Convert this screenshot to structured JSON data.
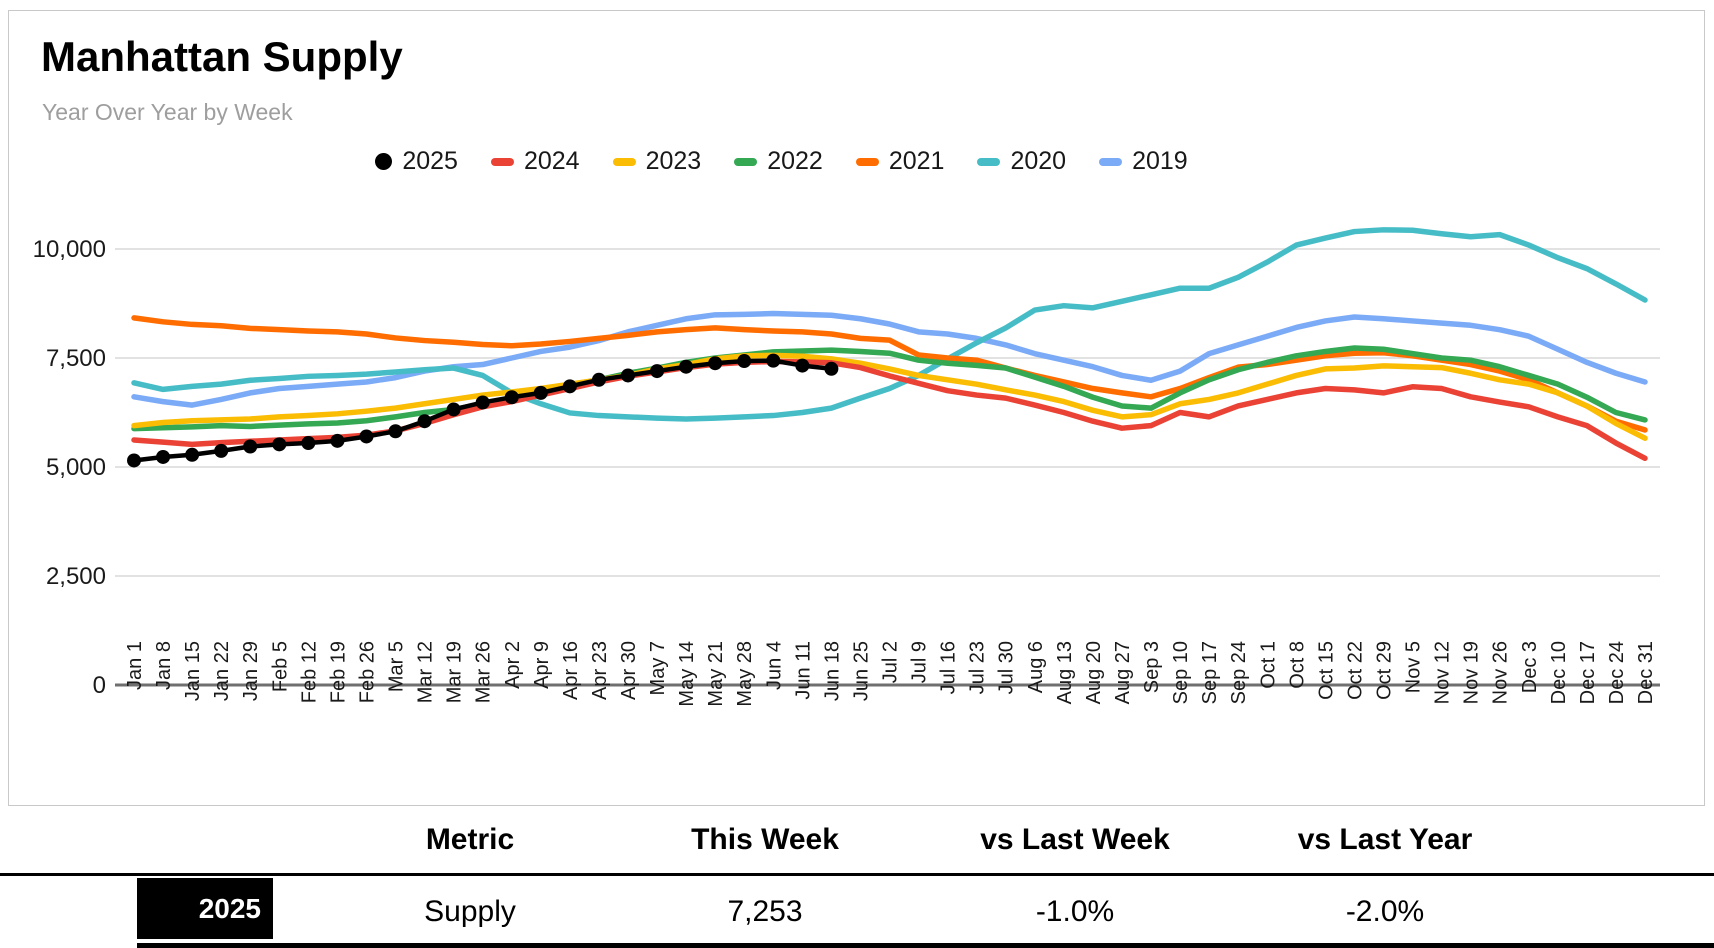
{
  "header": {
    "title": "Manhattan Supply",
    "subtitle": "Year Over Year by Week"
  },
  "chart_data": {
    "type": "line",
    "title": "Manhattan Supply",
    "subtitle": "Year Over Year by Week",
    "xlabel": "",
    "ylabel": "",
    "grid": true,
    "legend_position": "top",
    "ylim": [
      0,
      11000
    ],
    "y_axis": {
      "ticks": [
        0,
        2500,
        5000,
        7500,
        10000
      ],
      "tick_labels": [
        "0",
        "2,500",
        "5,000",
        "7,500",
        "10,000"
      ]
    },
    "x_categories": [
      "Jan 1",
      "Jan 8",
      "Jan 15",
      "Jan 22",
      "Jan 29",
      "Feb 5",
      "Feb 12",
      "Feb 19",
      "Feb 26",
      "Mar 5",
      "Mar 12",
      "Mar 19",
      "Mar 26",
      "Apr 2",
      "Apr 9",
      "Apr 16",
      "Apr 23",
      "Apr 30",
      "May 7",
      "May 14",
      "May 21",
      "May 28",
      "Jun 4",
      "Jun 11",
      "Jun 18",
      "Jun 25",
      "Jul 2",
      "Jul 9",
      "Jul 16",
      "Jul 23",
      "Jul 30",
      "Aug 6",
      "Aug 13",
      "Aug 20",
      "Aug 27",
      "Sep 3",
      "Sep 10",
      "Sep 17",
      "Sep 24",
      "Oct 1",
      "Oct 8",
      "Oct 15",
      "Oct 22",
      "Oct 29",
      "Nov 5",
      "Nov 12",
      "Nov 19",
      "Nov 26",
      "Dec 3",
      "Dec 10",
      "Dec 17",
      "Dec 24",
      "Dec 31"
    ],
    "series": [
      {
        "name": "2025",
        "color": "#000000",
        "point_markers": true,
        "values": [
          5150,
          5230,
          5280,
          5370,
          5470,
          5520,
          5550,
          5600,
          5700,
          5820,
          6050,
          6320,
          6480,
          6600,
          6700,
          6850,
          7000,
          7100,
          7200,
          7300,
          7380,
          7430,
          7440,
          7326,
          7253,
          null,
          null,
          null,
          null,
          null,
          null,
          null,
          null,
          null,
          null,
          null,
          null,
          null,
          null,
          null,
          null,
          null,
          null,
          null,
          null,
          null,
          null,
          null,
          null,
          null,
          null,
          null,
          null
        ]
      },
      {
        "name": "2024",
        "color": "#EA4335",
        "point_markers": false,
        "values": [
          5620,
          5570,
          5520,
          5560,
          5590,
          5620,
          5650,
          5680,
          5730,
          5830,
          6000,
          6200,
          6380,
          6500,
          6650,
          6800,
          6950,
          7080,
          7180,
          7280,
          7360,
          7400,
          7420,
          7410,
          7390,
          7280,
          7090,
          6920,
          6750,
          6650,
          6580,
          6420,
          6250,
          6050,
          5890,
          5950,
          6250,
          6150,
          6400,
          6550,
          6700,
          6800,
          6770,
          6700,
          6840,
          6800,
          6610,
          6490,
          6380,
          6150,
          5950,
          5550,
          5200
        ]
      },
      {
        "name": "2023",
        "color": "#FBBC04",
        "point_markers": false,
        "values": [
          5950,
          6020,
          6060,
          6080,
          6100,
          6150,
          6180,
          6220,
          6280,
          6350,
          6450,
          6550,
          6650,
          6720,
          6800,
          6900,
          7000,
          7100,
          7250,
          7350,
          7480,
          7550,
          7560,
          7540,
          7480,
          7380,
          7250,
          7100,
          7000,
          6900,
          6770,
          6650,
          6500,
          6300,
          6150,
          6200,
          6450,
          6550,
          6700,
          6900,
          7100,
          7250,
          7270,
          7320,
          7300,
          7280,
          7150,
          7000,
          6900,
          6700,
          6400,
          6000,
          5660
        ]
      },
      {
        "name": "2022",
        "color": "#34A853",
        "point_markers": false,
        "values": [
          5880,
          5900,
          5920,
          5950,
          5930,
          5960,
          5990,
          6010,
          6060,
          6150,
          6250,
          6320,
          6450,
          6550,
          6700,
          6850,
          7000,
          7150,
          7270,
          7400,
          7500,
          7570,
          7640,
          7660,
          7680,
          7650,
          7610,
          7450,
          7380,
          7330,
          7270,
          7060,
          6850,
          6600,
          6400,
          6350,
          6700,
          7000,
          7230,
          7400,
          7550,
          7650,
          7730,
          7700,
          7600,
          7500,
          7450,
          7300,
          7100,
          6900,
          6600,
          6250,
          6080
        ]
      },
      {
        "name": "2021",
        "color": "#FF6D01",
        "point_markers": false,
        "values": [
          8420,
          8330,
          8270,
          8240,
          8180,
          8150,
          8120,
          8100,
          8050,
          7960,
          7900,
          7860,
          7810,
          7780,
          7820,
          7880,
          7950,
          8020,
          8100,
          8150,
          8190,
          8150,
          8120,
          8100,
          8050,
          7950,
          7910,
          7570,
          7500,
          7450,
          7270,
          7100,
          6950,
          6800,
          6700,
          6610,
          6800,
          7050,
          7290,
          7350,
          7450,
          7550,
          7610,
          7620,
          7550,
          7450,
          7350,
          7200,
          7000,
          6700,
          6400,
          6050,
          5850
        ]
      },
      {
        "name": "2020",
        "color": "#46BDC6",
        "point_markers": false,
        "values": [
          6930,
          6780,
          6850,
          6900,
          6990,
          7030,
          7080,
          7100,
          7130,
          7180,
          7230,
          7270,
          7100,
          6700,
          6450,
          6240,
          6180,
          6150,
          6120,
          6100,
          6120,
          6150,
          6180,
          6250,
          6350,
          6580,
          6800,
          7100,
          7480,
          7850,
          8190,
          8600,
          8700,
          8650,
          8800,
          8950,
          9100,
          9100,
          9350,
          9700,
          10090,
          10250,
          10400,
          10440,
          10430,
          10350,
          10280,
          10330,
          10090,
          9800,
          9550,
          9200,
          8830
        ]
      },
      {
        "name": "2019",
        "color": "#7BAAF7",
        "point_markers": false,
        "values": [
          6610,
          6500,
          6420,
          6550,
          6700,
          6800,
          6850,
          6900,
          6950,
          7050,
          7200,
          7300,
          7350,
          7500,
          7650,
          7750,
          7900,
          8100,
          8250,
          8400,
          8490,
          8500,
          8520,
          8500,
          8480,
          8400,
          8280,
          8100,
          8050,
          7950,
          7800,
          7600,
          7450,
          7300,
          7100,
          6990,
          7200,
          7600,
          7800,
          8000,
          8200,
          8350,
          8440,
          8400,
          8350,
          8300,
          8250,
          8150,
          8000,
          7700,
          7400,
          7150,
          6950
        ]
      }
    ]
  },
  "table": {
    "headers": [
      "Metric",
      "This Week",
      "vs Last Week",
      "vs Last Year"
    ],
    "rows": [
      {
        "year": "2025",
        "badge_color": "#000000",
        "metric": "Supply",
        "this_week": "7,253",
        "vs_last_week": "-1.0%",
        "vs_last_year": "-2.0%"
      }
    ]
  }
}
